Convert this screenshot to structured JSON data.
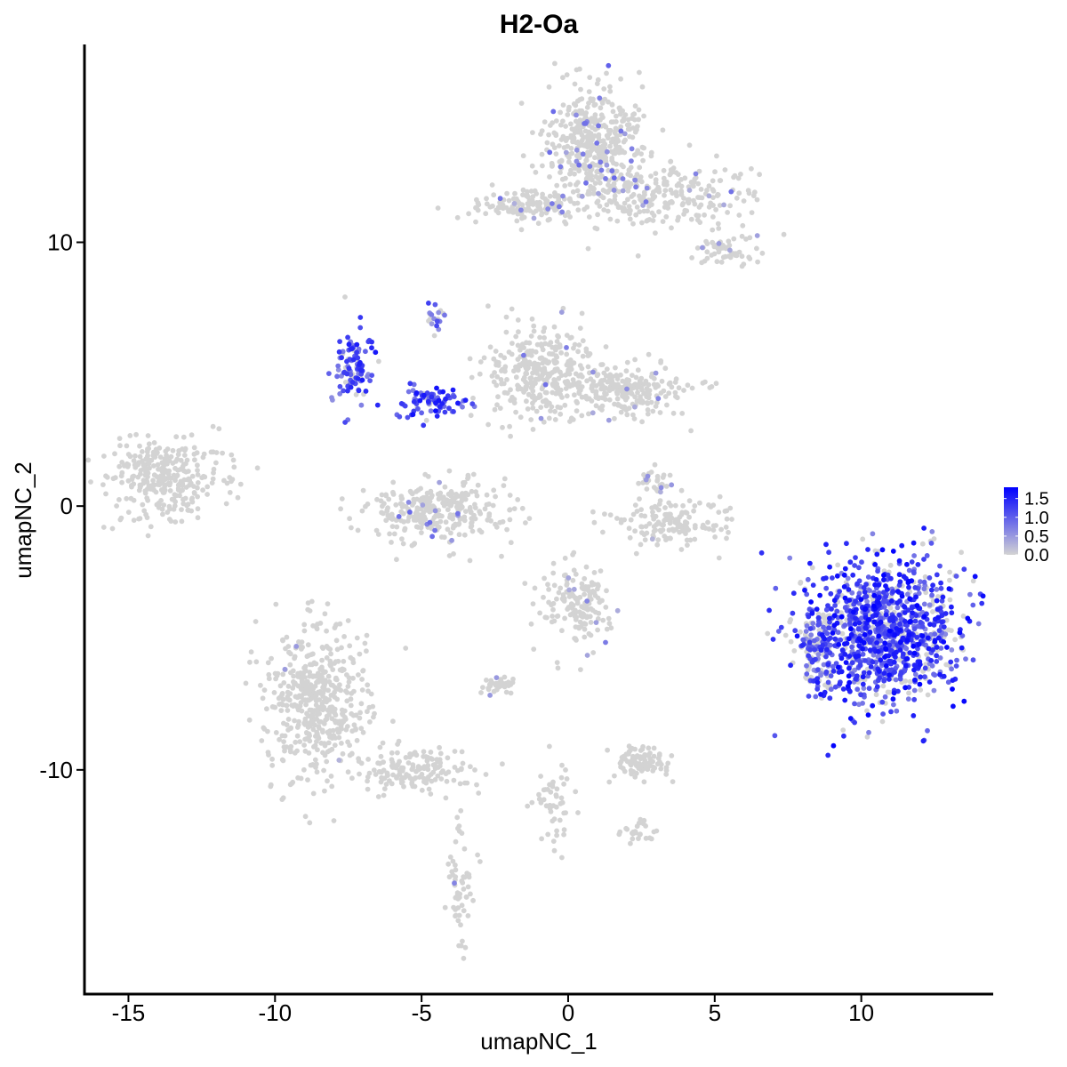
{
  "chart_data": {
    "type": "scatter",
    "title": "H2-Oa",
    "xlabel": "umapNC_1",
    "ylabel": "umapNC_2",
    "xlim": [
      -16.5,
      14.5
    ],
    "ylim": [
      -18.5,
      17.5
    ],
    "x_ticks": [
      -15,
      -10,
      -5,
      0,
      5,
      10
    ],
    "x_tick_labels": [
      "-15",
      "-10",
      "-5",
      "0",
      "5",
      "10"
    ],
    "y_ticks": [
      -10,
      0,
      10
    ],
    "y_tick_labels": [
      "-10",
      "0",
      "10"
    ],
    "grid": false,
    "legend_position": "right",
    "color_scale": {
      "low_color": "#d3d3d3",
      "high_color": "#0000ff",
      "min": 0,
      "max": 1.8,
      "ticks": [
        0.0,
        0.5,
        1.0,
        1.5
      ],
      "tick_labels": [
        "0.0",
        "0.5",
        "1.0",
        "1.5"
      ]
    },
    "clusters": [
      {
        "center": [
          1.0,
          13.8
        ],
        "spread": [
          0.9,
          1.0
        ],
        "n": 420,
        "expr": 0.06,
        "max_expr": 1.0
      },
      {
        "center": [
          3.2,
          11.8
        ],
        "spread": [
          1.6,
          0.6
        ],
        "n": 260,
        "expr": 0.04,
        "max_expr": 0.9
      },
      {
        "center": [
          -1.4,
          11.4
        ],
        "spread": [
          1.1,
          0.35
        ],
        "n": 140,
        "expr": 0.05,
        "max_expr": 0.9
      },
      {
        "center": [
          5.5,
          9.8
        ],
        "spread": [
          0.6,
          0.35
        ],
        "n": 60,
        "expr": 0.08,
        "max_expr": 0.8
      },
      {
        "center": [
          -13.8,
          1.1
        ],
        "spread": [
          1.0,
          0.8
        ],
        "n": 300,
        "expr": 0.01,
        "max_expr": 0.6
      },
      {
        "center": [
          -7.3,
          5.3
        ],
        "spread": [
          0.35,
          0.7
        ],
        "n": 110,
        "expr": 0.8,
        "max_expr": 1.6
      },
      {
        "center": [
          -4.7,
          3.9
        ],
        "spread": [
          0.6,
          0.3
        ],
        "n": 90,
        "expr": 0.8,
        "max_expr": 1.7
      },
      {
        "center": [
          -4.5,
          7.2
        ],
        "spread": [
          0.15,
          0.25
        ],
        "n": 20,
        "expr": 0.8,
        "max_expr": 1.3
      },
      {
        "center": [
          -0.9,
          5.0
        ],
        "spread": [
          0.9,
          0.9
        ],
        "n": 330,
        "expr": 0.03,
        "max_expr": 0.9
      },
      {
        "center": [
          1.8,
          4.4
        ],
        "spread": [
          1.0,
          0.5
        ],
        "n": 230,
        "expr": 0.02,
        "max_expr": 0.8
      },
      {
        "center": [
          -4.4,
          -0.2
        ],
        "spread": [
          1.2,
          0.6
        ],
        "n": 300,
        "expr": 0.05,
        "max_expr": 1.0
      },
      {
        "center": [
          3.5,
          -0.6
        ],
        "spread": [
          1.0,
          0.4
        ],
        "n": 150,
        "expr": 0.01,
        "max_expr": 0.5
      },
      {
        "center": [
          0.3,
          -3.8
        ],
        "spread": [
          0.6,
          0.7
        ],
        "n": 160,
        "expr": 0.04,
        "max_expr": 0.8
      },
      {
        "center": [
          -8.6,
          -7.4
        ],
        "spread": [
          0.9,
          1.4
        ],
        "n": 500,
        "expr": 0.01,
        "max_expr": 0.5
      },
      {
        "center": [
          -5.2,
          -10.0
        ],
        "spread": [
          1.0,
          0.4
        ],
        "n": 150,
        "expr": 0.0,
        "max_expr": 0.3
      },
      {
        "center": [
          -3.7,
          -14.2
        ],
        "spread": [
          0.25,
          1.3
        ],
        "n": 60,
        "expr": 0.02,
        "max_expr": 0.8
      },
      {
        "center": [
          2.4,
          -9.7
        ],
        "spread": [
          0.5,
          0.3
        ],
        "n": 100,
        "expr": 0.0,
        "max_expr": 0.3
      },
      {
        "center": [
          -0.5,
          -11.2
        ],
        "spread": [
          0.3,
          0.9
        ],
        "n": 50,
        "expr": 0.0,
        "max_expr": 0.3
      },
      {
        "center": [
          -2.3,
          -6.8
        ],
        "spread": [
          0.3,
          0.2
        ],
        "n": 35,
        "expr": 0.1,
        "max_expr": 0.8
      },
      {
        "center": [
          2.4,
          -12.4
        ],
        "spread": [
          0.3,
          0.2
        ],
        "n": 25,
        "expr": 0.0,
        "max_expr": 0.3
      },
      {
        "center": [
          10.8,
          -4.8
        ],
        "spread": [
          1.3,
          1.4
        ],
        "n": 1100,
        "expr": 0.75,
        "max_expr": 1.8
      },
      {
        "center": [
          8.5,
          -5.4
        ],
        "spread": [
          0.35,
          0.8
        ],
        "n": 120,
        "expr": 0.55,
        "max_expr": 1.5
      },
      {
        "center": [
          3.0,
          1.0
        ],
        "spread": [
          0.3,
          0.4
        ],
        "n": 30,
        "expr": 0.05,
        "max_expr": 0.6
      }
    ]
  }
}
